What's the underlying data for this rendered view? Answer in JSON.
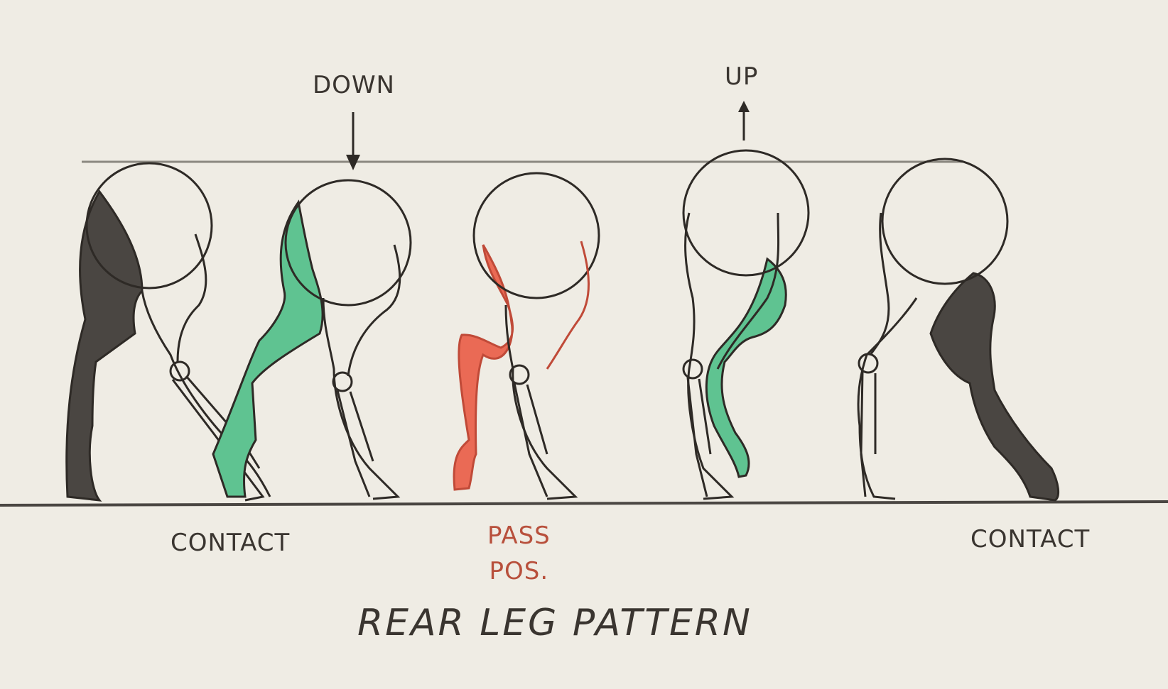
{
  "title": "REAR LEG PATTERN",
  "labels": {
    "down": "DOWN",
    "up": "UP",
    "contact_left": "CONTACT",
    "contact_right": "CONTACT",
    "pass_line1": "PASS",
    "pass_line2": "POS."
  },
  "colors": {
    "paper": "#efece4",
    "ink": "#2e2a26",
    "green": "#5fc391",
    "red": "#ea6a55",
    "dark": "#3a3632"
  },
  "icons": [
    "down-arrow-icon",
    "up-arrow-icon"
  ]
}
